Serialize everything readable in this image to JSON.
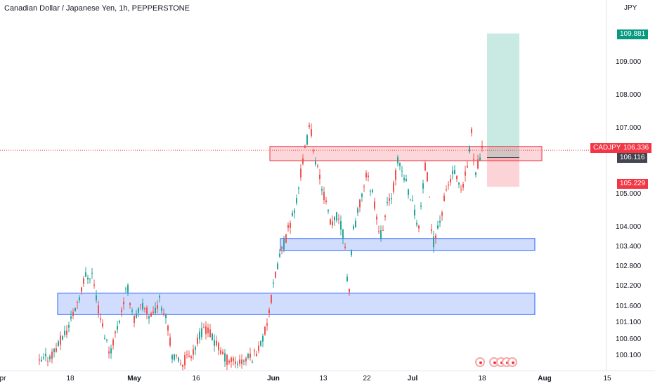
{
  "header": {
    "title": "Canadian Dollar / Japanese Yen, 1h, PEPPERSTONE",
    "currency": "JPY"
  },
  "y_axis": {
    "ticks": [
      "109.000",
      "108.000",
      "107.000",
      "105.000",
      "104.000",
      "103.400",
      "102.800",
      "102.200",
      "101.600",
      "101.100",
      "100.600",
      "100.100"
    ]
  },
  "x_axis": {
    "ticks": [
      {
        "label": "pr",
        "strong": false
      },
      {
        "label": "18",
        "strong": false
      },
      {
        "label": "May",
        "strong": true
      },
      {
        "label": "16",
        "strong": false
      },
      {
        "label": "Jun",
        "strong": true
      },
      {
        "label": "13",
        "strong": false
      },
      {
        "label": "22",
        "strong": false
      },
      {
        "label": "Jul",
        "strong": true
      },
      {
        "label": "18",
        "strong": false
      },
      {
        "label": "Aug",
        "strong": true
      },
      {
        "label": "15",
        "strong": false
      }
    ]
  },
  "badges": {
    "target": "109.881",
    "symbol": "CADJPY",
    "price": "106.336",
    "entry": "106.116",
    "stop": "105.229"
  },
  "colors": {
    "bull": "#26a69a",
    "bear": "#ef5350",
    "zone_red": "#f23645",
    "zone_blue": "#2962ff",
    "target_green": "#089981",
    "stop_red": "#f23645"
  },
  "chart_data": {
    "type": "candlestick",
    "symbol": "CADJPY",
    "interval": "1h",
    "ylim": [
      99.9,
      110.6
    ],
    "current_price": 106.336,
    "zones": [
      {
        "kind": "resistance",
        "low": 106.02,
        "high": 106.45
      },
      {
        "kind": "support",
        "low": 103.3,
        "high": 103.66
      },
      {
        "kind": "support",
        "low": 101.35,
        "high": 102.0
      }
    ],
    "position": {
      "side": "long",
      "entry": 106.116,
      "target": 109.881,
      "stop": 105.229
    },
    "price_path_anchors": [
      [
        55,
        99.85
      ],
      [
        75,
        100.2
      ],
      [
        95,
        100.9
      ],
      [
        110,
        101.8
      ],
      [
        120,
        102.5
      ],
      [
        130,
        102.6
      ],
      [
        140,
        101.4
      ],
      [
        155,
        100.2
      ],
      [
        165,
        100.9
      ],
      [
        180,
        102.2
      ],
      [
        190,
        101.2
      ],
      [
        200,
        101.6
      ],
      [
        215,
        101.3
      ],
      [
        225,
        101.8
      ],
      [
        235,
        101.4
      ],
      [
        245,
        100.0
      ],
      [
        260,
        99.9
      ],
      [
        275,
        100.3
      ],
      [
        290,
        101.0
      ],
      [
        305,
        100.5
      ],
      [
        320,
        100.0
      ],
      [
        340,
        99.9
      ],
      [
        360,
        100.1
      ],
      [
        375,
        100.7
      ],
      [
        385,
        101.8
      ],
      [
        395,
        103.0
      ],
      [
        405,
        103.6
      ],
      [
        420,
        104.7
      ],
      [
        430,
        106.0
      ],
      [
        440,
        107.1
      ],
      [
        450,
        105.8
      ],
      [
        460,
        105.0
      ],
      [
        470,
        104.0
      ],
      [
        480,
        104.4
      ],
      [
        490,
        103.5
      ],
      [
        495,
        101.7
      ],
      [
        500,
        103.7
      ],
      [
        510,
        104.6
      ],
      [
        520,
        105.6
      ],
      [
        530,
        105.0
      ],
      [
        540,
        103.7
      ],
      [
        550,
        104.6
      ],
      [
        560,
        105.3
      ],
      [
        565,
        106.0
      ],
      [
        575,
        105.5
      ],
      [
        585,
        104.8
      ],
      [
        595,
        104.0
      ],
      [
        605,
        106.0
      ],
      [
        615,
        103.5
      ],
      [
        625,
        104.2
      ],
      [
        635,
        105.2
      ],
      [
        645,
        105.7
      ],
      [
        655,
        105.0
      ],
      [
        665,
        105.9
      ],
      [
        670,
        106.9
      ],
      [
        675,
        105.7
      ],
      [
        685,
        106.3
      ]
    ]
  }
}
